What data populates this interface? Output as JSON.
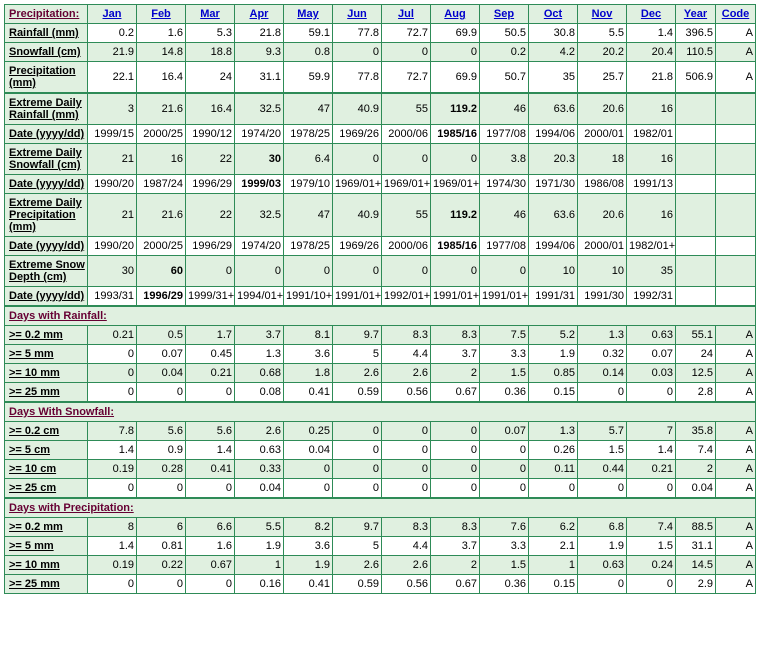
{
  "header": {
    "label": "Precipitation:",
    "months": [
      "Jan",
      "Feb",
      "Mar",
      "Apr",
      "May",
      "Jun",
      "Jul",
      "Aug",
      "Sep",
      "Oct",
      "Nov",
      "Dec"
    ],
    "year": "Year",
    "code": "Code"
  },
  "mainRows": [
    {
      "label": "Rainfall (mm)",
      "alt": false,
      "vals": [
        "0.2",
        "1.6",
        "5.3",
        "21.8",
        "59.1",
        "77.8",
        "72.7",
        "69.9",
        "50.5",
        "30.8",
        "5.5",
        "1.4"
      ],
      "year": "396.5",
      "code": "A",
      "bold": []
    },
    {
      "label": "Snowfall (cm)",
      "alt": true,
      "vals": [
        "21.9",
        "14.8",
        "18.8",
        "9.3",
        "0.8",
        "0",
        "0",
        "0",
        "0.2",
        "4.2",
        "20.2",
        "20.4"
      ],
      "year": "110.5",
      "code": "A",
      "bold": []
    },
    {
      "label": "Precipitation (mm)",
      "alt": false,
      "vals": [
        "22.1",
        "16.4",
        "24",
        "31.1",
        "59.9",
        "77.8",
        "72.7",
        "69.9",
        "50.7",
        "35",
        "25.7",
        "21.8"
      ],
      "year": "506.9",
      "code": "A",
      "bold": []
    }
  ],
  "extremeRows": [
    {
      "label": "Extreme Daily Rainfall (mm)",
      "alt": true,
      "vals": [
        "3",
        "21.6",
        "16.4",
        "32.5",
        "47",
        "40.9",
        "55",
        "119.2",
        "46",
        "63.6",
        "20.6",
        "16"
      ],
      "year": "",
      "code": "",
      "bold": [
        7
      ]
    },
    {
      "label": "Date (yyyy/dd)",
      "alt": false,
      "vals": [
        "1999/15",
        "2000/25",
        "1990/12",
        "1974/20",
        "1978/25",
        "1969/26",
        "2000/06",
        "1985/16",
        "1977/08",
        "1994/06",
        "2000/01",
        "1982/01"
      ],
      "year": "",
      "code": "",
      "bold": [
        7
      ]
    },
    {
      "label": "Extreme Daily Snowfall (cm)",
      "alt": true,
      "vals": [
        "21",
        "16",
        "22",
        "30",
        "6.4",
        "0",
        "0",
        "0",
        "3.8",
        "20.3",
        "18",
        "16"
      ],
      "year": "",
      "code": "",
      "bold": [
        3
      ]
    },
    {
      "label": "Date (yyyy/dd)",
      "alt": false,
      "vals": [
        "1990/20",
        "1987/24",
        "1996/29",
        "1999/03",
        "1979/10",
        "1969/01+",
        "1969/01+",
        "1969/01+",
        "1974/30",
        "1971/30",
        "1986/08",
        "1991/13"
      ],
      "year": "",
      "code": "",
      "bold": [
        3
      ]
    },
    {
      "label": "Extreme Daily Precipitation (mm)",
      "alt": true,
      "vals": [
        "21",
        "21.6",
        "22",
        "32.5",
        "47",
        "40.9",
        "55",
        "119.2",
        "46",
        "63.6",
        "20.6",
        "16"
      ],
      "year": "",
      "code": "",
      "bold": [
        7
      ]
    },
    {
      "label": "Date (yyyy/dd)",
      "alt": false,
      "vals": [
        "1990/20",
        "2000/25",
        "1996/29",
        "1974/20",
        "1978/25",
        "1969/26",
        "2000/06",
        "1985/16",
        "1977/08",
        "1994/06",
        "2000/01",
        "1982/01+"
      ],
      "year": "",
      "code": "",
      "bold": [
        7
      ]
    },
    {
      "label": "Extreme Snow Depth (cm)",
      "alt": true,
      "vals": [
        "30",
        "60",
        "0",
        "0",
        "0",
        "0",
        "0",
        "0",
        "0",
        "10",
        "10",
        "35"
      ],
      "year": "",
      "code": "",
      "bold": [
        1
      ]
    },
    {
      "label": "Date (yyyy/dd)",
      "alt": false,
      "vals": [
        "1993/31",
        "1996/29",
        "1999/31+",
        "1994/01+",
        "1991/10+",
        "1991/01+",
        "1992/01+",
        "1991/01+",
        "1991/01+",
        "1991/31",
        "1991/30",
        "1992/31"
      ],
      "year": "",
      "code": "",
      "bold": [
        1
      ]
    }
  ],
  "sections": [
    {
      "title": "Days with Rainfall:",
      "rows": [
        {
          "label": ">= 0.2 mm",
          "alt": true,
          "vals": [
            "0.21",
            "0.5",
            "1.7",
            "3.7",
            "8.1",
            "9.7",
            "8.3",
            "8.3",
            "7.5",
            "5.2",
            "1.3",
            "0.63"
          ],
          "year": "55.1",
          "code": "A"
        },
        {
          "label": ">= 5 mm",
          "alt": false,
          "vals": [
            "0",
            "0.07",
            "0.45",
            "1.3",
            "3.6",
            "5",
            "4.4",
            "3.7",
            "3.3",
            "1.9",
            "0.32",
            "0.07"
          ],
          "year": "24",
          "code": "A"
        },
        {
          "label": ">= 10 mm",
          "alt": true,
          "vals": [
            "0",
            "0.04",
            "0.21",
            "0.68",
            "1.8",
            "2.6",
            "2.6",
            "2",
            "1.5",
            "0.85",
            "0.14",
            "0.03"
          ],
          "year": "12.5",
          "code": "A"
        },
        {
          "label": ">= 25 mm",
          "alt": false,
          "vals": [
            "0",
            "0",
            "0",
            "0.08",
            "0.41",
            "0.59",
            "0.56",
            "0.67",
            "0.36",
            "0.15",
            "0",
            "0"
          ],
          "year": "2.8",
          "code": "A"
        }
      ]
    },
    {
      "title": "Days With Snowfall:",
      "rows": [
        {
          "label": ">= 0.2 cm",
          "alt": true,
          "vals": [
            "7.8",
            "5.6",
            "5.6",
            "2.6",
            "0.25",
            "0",
            "0",
            "0",
            "0.07",
            "1.3",
            "5.7",
            "7"
          ],
          "year": "35.8",
          "code": "A"
        },
        {
          "label": ">= 5 cm",
          "alt": false,
          "vals": [
            "1.4",
            "0.9",
            "1.4",
            "0.63",
            "0.04",
            "0",
            "0",
            "0",
            "0",
            "0.26",
            "1.5",
            "1.4"
          ],
          "year": "7.4",
          "code": "A"
        },
        {
          "label": ">= 10 cm",
          "alt": true,
          "vals": [
            "0.19",
            "0.28",
            "0.41",
            "0.33",
            "0",
            "0",
            "0",
            "0",
            "0",
            "0.11",
            "0.44",
            "0.21"
          ],
          "year": "2",
          "code": "A"
        },
        {
          "label": ">= 25 cm",
          "alt": false,
          "vals": [
            "0",
            "0",
            "0",
            "0.04",
            "0",
            "0",
            "0",
            "0",
            "0",
            "0",
            "0",
            "0"
          ],
          "year": "0.04",
          "code": "A"
        }
      ]
    },
    {
      "title": "Days with Precipitation:",
      "rows": [
        {
          "label": ">= 0.2 mm",
          "alt": true,
          "vals": [
            "8",
            "6",
            "6.6",
            "5.5",
            "8.2",
            "9.7",
            "8.3",
            "8.3",
            "7.6",
            "6.2",
            "6.8",
            "7.4"
          ],
          "year": "88.5",
          "code": "A"
        },
        {
          "label": ">= 5 mm",
          "alt": false,
          "vals": [
            "1.4",
            "0.81",
            "1.6",
            "1.9",
            "3.6",
            "5",
            "4.4",
            "3.7",
            "3.3",
            "2.1",
            "1.9",
            "1.5"
          ],
          "year": "31.1",
          "code": "A"
        },
        {
          "label": ">= 10 mm",
          "alt": true,
          "vals": [
            "0.19",
            "0.22",
            "0.67",
            "1",
            "1.9",
            "2.6",
            "2.6",
            "2",
            "1.5",
            "1",
            "0.63",
            "0.24"
          ],
          "year": "14.5",
          "code": "A"
        },
        {
          "label": ">= 25 mm",
          "alt": false,
          "vals": [
            "0",
            "0",
            "0",
            "0.16",
            "0.41",
            "0.59",
            "0.56",
            "0.67",
            "0.36",
            "0.15",
            "0",
            "0"
          ],
          "year": "2.9",
          "code": "A"
        }
      ]
    }
  ]
}
